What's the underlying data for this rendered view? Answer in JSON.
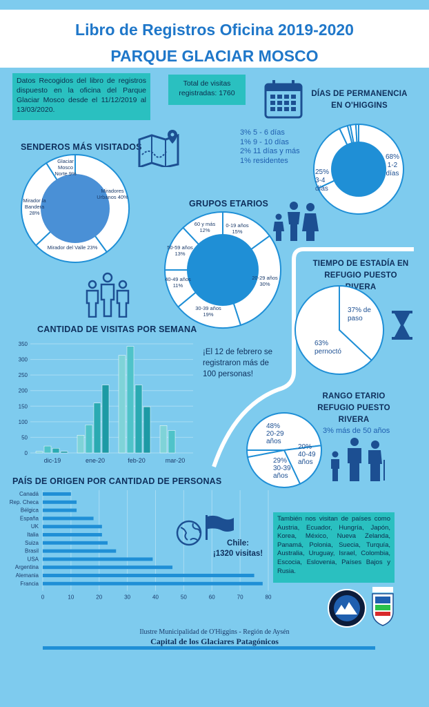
{
  "header": {
    "title": "Libro de Registros Oficina 2019-2020",
    "subtitle": "PARQUE GLACIAR MOSCO"
  },
  "intro": "Datos Recogidos del libro de registros dispuesto en la oficina del Parque Glaciar Mosco desde el 11/12/2019 al 13/03/2020.",
  "total_box": "Total de visitas registradas: 1760",
  "permanencia": {
    "title_line1": "DÍAS DE PERMANENCIA",
    "title_line2": "EN O'HIGGINS",
    "legend": [
      "3%  5 - 6 días",
      "1%  9 - 10 días",
      "2%  11 días y más",
      "1% residentes"
    ],
    "big_label": "68%\n1-2\ndías",
    "mid_label": "25%\n3-4\ndías"
  },
  "senderos": {
    "title": "SENDEROS MÁS VISITADOS",
    "labels": {
      "glaciar": "Glaciar Mosco Norte 9%",
      "miradores": "Miradores Urbanos 40%",
      "valle": "Mirador del Valle 23%",
      "bandera": "Mirador la Bandera 28%"
    }
  },
  "grupos": {
    "title": "GRUPOS ETARIOS",
    "labels": {
      "a0": "0-19 años 15%",
      "a20": "20-29 años 30%",
      "a30": "30-39 años 19%",
      "a40": "40-49 años 11%",
      "a50": "50-59 años 13%",
      "a60": "60 y más 12%"
    }
  },
  "estadia": {
    "title_line1": "TIEMPO DE ESTADÍA EN",
    "title_line2": "REFUGIO PUESTO RIVERA",
    "paso": "37% de paso",
    "pernocto": "63% pernoctó"
  },
  "rango": {
    "title_line1": "RANGO ETARIO",
    "title_line2": "REFUGIO PUESTO RIVERA",
    "r20": "48% 20-29 años",
    "r40": "20% 40-49 años",
    "r30": "29% 30-39 años",
    "mas50": "3% más de 50 años"
  },
  "semana": {
    "title": "CANTIDAD DE VISITAS POR SEMANA",
    "note": "¡El 12 de febrero se registraron más de 100 personas!"
  },
  "pais": {
    "title": "PAÍS DE ORIGEN POR CANTIDAD DE PERSONAS",
    "chile_line1": "Chile:",
    "chile_line2": "¡1320 visitas!",
    "otros": "También nos visitan de países como Austria, Ecuador, Hungría, Japón, Korea, México, Nueva Zelanda, Panamá, Polonia, Suecia, Turquía, Australia, Uruguay, Israel, Colombia, Escocia, Eslovenia, Países Bajos y Rusia."
  },
  "footer": {
    "line1": "Ilustre Municipalidad de O'Higgins - Región de Aysén",
    "line2": "Capital de los Glaciares Patagónicos"
  },
  "colors": {
    "background": "#7ecbee",
    "title": "#1f77c9",
    "teal": "#2ac0c0",
    "bar": "#1f8fd6"
  },
  "chart_data": [
    {
      "type": "bar",
      "title": "CANTIDAD DE VISITAS POR SEMANA",
      "x_tick_labels": [
        "dic-19",
        "ene-20",
        "feb-20",
        "mar-20"
      ],
      "ylim": [
        0,
        350
      ],
      "yticks": [
        0,
        50,
        100,
        150,
        200,
        250,
        300,
        350
      ],
      "grid": true,
      "values": [
        5,
        22,
        15,
        5,
        57,
        90,
        160,
        218,
        313,
        342,
        218,
        148,
        88,
        72
      ]
    },
    {
      "type": "bar",
      "orientation": "horizontal",
      "title": "PAÍS DE ORIGEN POR CANTIDAD DE PERSONAS",
      "categories": [
        "Canadá",
        "Rep. Checa",
        "Bélgica",
        "España",
        "UK",
        "Italia",
        "Suiza",
        "Brasil",
        "USA",
        "Argentina",
        "Alemania",
        "Francia"
      ],
      "values": [
        10,
        12,
        12,
        18,
        21,
        21,
        23,
        26,
        39,
        46,
        75,
        78
      ],
      "xlim": [
        0,
        80
      ],
      "xticks": [
        0,
        10,
        20,
        30,
        40,
        50,
        60,
        70,
        80
      ]
    },
    {
      "type": "pie",
      "title": "SENDEROS MÁS VISITADOS",
      "categories": [
        "Miradores Urbanos",
        "Mirador del Valle",
        "Mirador la Bandera",
        "Glaciar Mosco Norte"
      ],
      "values": [
        40,
        23,
        28,
        9
      ]
    },
    {
      "type": "pie",
      "title": "GRUPOS ETARIOS",
      "categories": [
        "0-19 años",
        "20-29 años",
        "30-39 años",
        "40-49 años",
        "50-59 años",
        "60 y más"
      ],
      "values": [
        15,
        30,
        19,
        11,
        13,
        12
      ]
    },
    {
      "type": "pie",
      "title": "DÍAS DE PERMANENCIA EN O'HIGGINS",
      "categories": [
        "1-2 días",
        "3-4 días",
        "5 - 6 días",
        "9 - 10 días",
        "11 días y más",
        "residentes"
      ],
      "values": [
        68,
        25,
        3,
        1,
        2,
        1
      ]
    },
    {
      "type": "pie",
      "title": "TIEMPO DE ESTADÍA EN REFUGIO PUESTO RIVERA",
      "categories": [
        "de paso",
        "pernoctó"
      ],
      "values": [
        37,
        63
      ]
    },
    {
      "type": "pie",
      "title": "RANGO ETARIO REFUGIO PUESTO RIVERA",
      "categories": [
        "20-29 años",
        "40-49 años",
        "30-39 años",
        "más de 50 años"
      ],
      "values": [
        48,
        20,
        29,
        3
      ]
    }
  ]
}
